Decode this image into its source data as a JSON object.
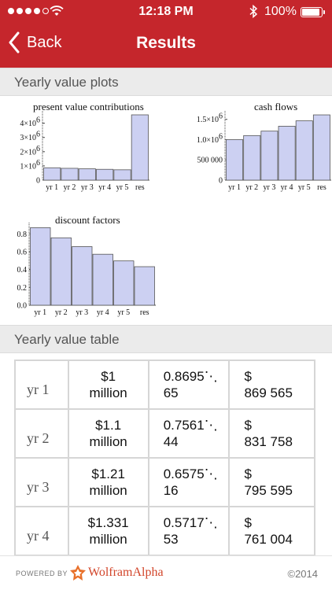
{
  "status_bar": {
    "time": "12:18 PM",
    "battery_percent": "100%",
    "signal_bars_filled": 4,
    "signal_bars_total": 5
  },
  "nav": {
    "back_label": "Back",
    "title": "Results"
  },
  "sections": {
    "plots_title": "Yearly value plots",
    "table_title": "Yearly value table"
  },
  "chart_data": [
    {
      "type": "bar",
      "title": "present value contributions",
      "categories": [
        "yr 1",
        "yr 2",
        "yr 3",
        "yr 4",
        "yr 5",
        "res"
      ],
      "values": [
        869565,
        831758,
        795595,
        761004,
        727917,
        4590000
      ],
      "ylim": [
        0,
        4700000
      ],
      "yticks": [
        0,
        1000000,
        2000000,
        3000000,
        4000000
      ],
      "ytick_labels": [
        "0",
        "1×10",
        "2×10",
        "3×10",
        "4×10"
      ],
      "ytick_exps": [
        "",
        "6",
        "6",
        "6",
        "6"
      ],
      "bar_color": "#ccd0f2"
    },
    {
      "type": "bar",
      "title": "cash flows",
      "categories": [
        "yr 1",
        "yr 2",
        "yr 3",
        "yr 4",
        "yr 5",
        "res"
      ],
      "values": [
        1000000,
        1100000,
        1210000,
        1331000,
        1464100,
        1610510
      ],
      "ylim": [
        0,
        1650000
      ],
      "yticks": [
        0,
        500000,
        1000000,
        1500000
      ],
      "ytick_labels": [
        "0",
        "500 000",
        "1.0×10",
        "1.5×10"
      ],
      "ytick_exps": [
        "",
        "",
        "6",
        "6"
      ],
      "bar_color": "#ccd0f2"
    },
    {
      "type": "bar",
      "title": "discount factors",
      "categories": [
        "yr 1",
        "yr 2",
        "yr 3",
        "yr 4",
        "yr 5",
        "res"
      ],
      "values": [
        0.8696,
        0.7561,
        0.6575,
        0.5718,
        0.4972,
        0.4323
      ],
      "ylim": [
        0,
        0.9
      ],
      "yticks": [
        0,
        0.2,
        0.4,
        0.6,
        0.8
      ],
      "ytick_labels": [
        "0.0",
        "0.2",
        "0.4",
        "0.6",
        "0.8"
      ],
      "ytick_exps": [
        "",
        "",
        "",
        "",
        ""
      ],
      "bar_color": "#ccd0f2"
    }
  ],
  "table": {
    "rows": [
      {
        "label": "yr 1",
        "cash": [
          "$1",
          "million"
        ],
        "factor": [
          "0.8695⋱",
          "65"
        ],
        "value": [
          "$",
          "869 565"
        ]
      },
      {
        "label": "yr 2",
        "cash": [
          "$1.1",
          "million"
        ],
        "factor": [
          "0.7561⋱",
          "44"
        ],
        "value": [
          "$",
          "831 758"
        ]
      },
      {
        "label": "yr 3",
        "cash": [
          "$1.21",
          "million"
        ],
        "factor": [
          "0.6575⋱",
          "16"
        ],
        "value": [
          "$",
          "795 595"
        ]
      },
      {
        "label": "yr 4",
        "cash": [
          "$1.331",
          "million"
        ],
        "factor": [
          "0.5717⋱",
          "53"
        ],
        "value": [
          "$",
          "761 004"
        ]
      }
    ]
  },
  "footer": {
    "powered_by": "POWERED BY",
    "brand": "WolframAlpha",
    "copyright": "©2014"
  },
  "colors": {
    "nav_red": "#c5262c",
    "bar_fill": "#ccd0f2",
    "brand_orange": "#d2452a"
  }
}
